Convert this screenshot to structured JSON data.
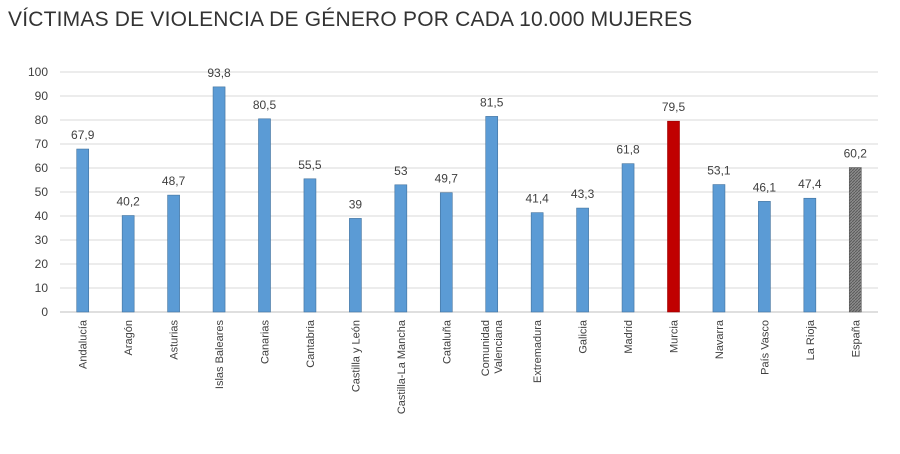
{
  "title": "VÍCTIMAS DE VIOLENCIA DE GÉNERO POR CADA 10.000 MUJERES",
  "chart_data": {
    "type": "bar",
    "title": "VÍCTIMAS DE VIOLENCIA DE GÉNERO POR CADA 10.000 MUJERES",
    "xlabel": "",
    "ylabel": "",
    "ylim": [
      0,
      100
    ],
    "yticks": [
      0,
      10,
      20,
      30,
      40,
      50,
      60,
      70,
      80,
      90,
      100
    ],
    "grid": true,
    "categories": [
      "Andalucía",
      "Aragón",
      "Asturias",
      "Islas Baleares",
      "Canarias",
      "Cantabria",
      "Castilla y León",
      "Castilla-La Mancha",
      "Cataluña",
      "Comunidad Valenciana",
      "Extremadura",
      "Galicia",
      "Madrid",
      "Murcia",
      "Navarra",
      "País Vasco",
      "La Rioja",
      "España"
    ],
    "category_lines": [
      [
        "Andalucía"
      ],
      [
        "Aragón"
      ],
      [
        "Asturias"
      ],
      [
        "Islas Baleares"
      ],
      [
        "Canarias"
      ],
      [
        "Cantabria"
      ],
      [
        "Castilla y León"
      ],
      [
        "Castilla-La Mancha"
      ],
      [
        "Cataluña"
      ],
      [
        "Comunidad",
        "Valenciana"
      ],
      [
        "Extremadura"
      ],
      [
        "Galicia"
      ],
      [
        "Madrid"
      ],
      [
        "Murcia"
      ],
      [
        "Navarra"
      ],
      [
        "País Vasco"
      ],
      [
        "La Rioja"
      ],
      [
        "España"
      ]
    ],
    "values": [
      67.9,
      40.2,
      48.7,
      93.8,
      80.5,
      55.5,
      39,
      53,
      49.7,
      81.5,
      41.4,
      43.3,
      61.8,
      79.5,
      53.1,
      46.1,
      47.4,
      60.2
    ],
    "value_labels": [
      "67,9",
      "40,2",
      "48,7",
      "93,8",
      "80,5",
      "55,5",
      "39",
      "53",
      "49,7",
      "81,5",
      "41,4",
      "43,3",
      "61,8",
      "79,5",
      "53,1",
      "46,1",
      "47,4",
      "60,2"
    ],
    "colors": {
      "default": "#5b9bd5",
      "default_edge": "#41719c",
      "highlight": "#c00000",
      "national": "#7f7f7f",
      "grid": "#d9d9d9",
      "axis": "#bfbfbf"
    },
    "highlight_category": "Murcia",
    "national_category": "España"
  }
}
